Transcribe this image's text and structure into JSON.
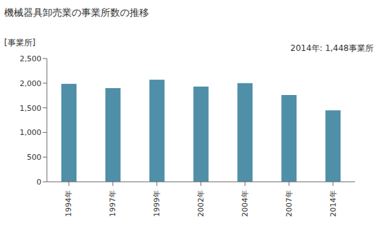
{
  "chart_data": {
    "type": "bar",
    "title": "機械器具卸売業の事業所数の推移",
    "y_label": "[事業所]",
    "annotation": "2014年: 1,448事業所",
    "categories": [
      "1994年",
      "1997年",
      "1999年",
      "2002年",
      "2004年",
      "2007年",
      "2014年"
    ],
    "values": [
      1985,
      1900,
      2070,
      1930,
      2000,
      1760,
      1448
    ],
    "color": "#4f8fa8",
    "ylim": [
      0,
      2500
    ],
    "yticks": [
      0,
      500,
      {
        "value": 1000,
        "label": "1,000"
      },
      {
        "value": 1500,
        "label": "1,500"
      },
      {
        "value": 2000,
        "label": "2,000"
      },
      {
        "value": 2500,
        "label": "2,500"
      }
    ],
    "grid": false
  }
}
